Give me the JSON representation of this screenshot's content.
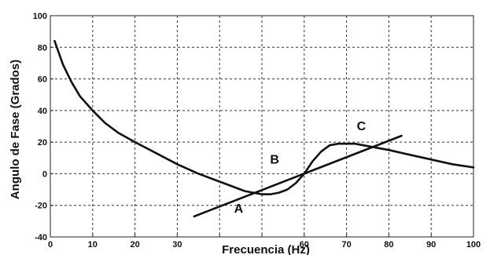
{
  "chart_data": {
    "type": "line",
    "title": "",
    "xlabel": "Frecuencia (Hz)",
    "ylabel": "Angulo de Fase (Grados)",
    "xlim": [
      0,
      100
    ],
    "ylim": [
      -40,
      100
    ],
    "grid": true,
    "grid_style": "dashed",
    "line_color": "#111111",
    "x_ticks": [
      0,
      10,
      20,
      30,
      40,
      50,
      60,
      70,
      80,
      90,
      100
    ],
    "x_tick_labels": [
      "0",
      "10",
      "20",
      "30",
      "",
      "",
      "60",
      "70",
      "80",
      "90",
      "100"
    ],
    "y_ticks": [
      -40,
      -20,
      0,
      20,
      40,
      60,
      80,
      100
    ],
    "y_tick_labels": [
      "-40",
      "-20",
      "0",
      "20",
      "40",
      "60",
      "80",
      "100"
    ],
    "series": [
      {
        "x": [
          1,
          3,
          5,
          7,
          10,
          13,
          16,
          20,
          25,
          30,
          35,
          40,
          43,
          45,
          46,
          48,
          50
        ],
        "y": [
          84,
          69,
          58,
          49,
          40,
          32,
          26,
          20,
          13,
          6,
          0,
          -5,
          -8,
          -10,
          -11,
          -12,
          -13
        ]
      },
      {
        "x": [
          50,
          52,
          54,
          56,
          57,
          58,
          59,
          60,
          61,
          62,
          63,
          64,
          65,
          66,
          68,
          70,
          72,
          74,
          76,
          78,
          80,
          85,
          90,
          95,
          100
        ],
        "y": [
          -13,
          -13,
          -12,
          -10,
          -8,
          -6,
          -3,
          0,
          4,
          8,
          11,
          14,
          16,
          18,
          19,
          19,
          19,
          18,
          17,
          16,
          15,
          12,
          9,
          6,
          4
        ]
      },
      {
        "x": [
          34,
          83
        ],
        "y": [
          -27,
          24
        ]
      }
    ],
    "annotations": [
      {
        "text": "A",
        "x": 44.5,
        "y": -24.5
      },
      {
        "text": "B",
        "x": 53.0,
        "y": 6.5
      },
      {
        "text": "C",
        "x": 73.5,
        "y": 27.5
      }
    ]
  }
}
